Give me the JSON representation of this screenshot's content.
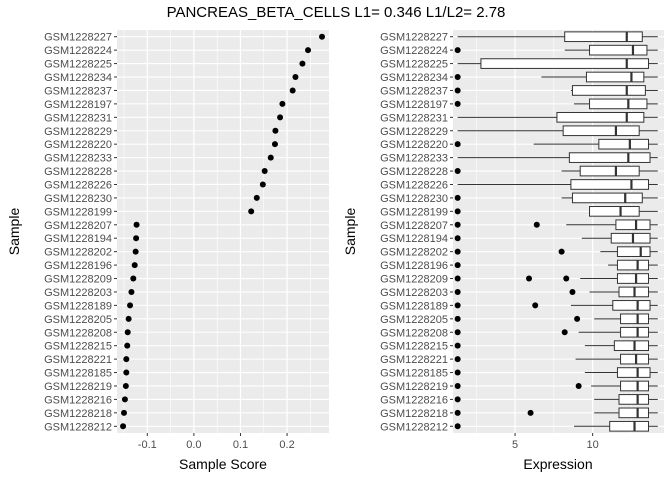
{
  "figure": {
    "title": "PANCREAS_BETA_CELLS L1= 0.346 L1/L2= 2.78"
  },
  "colors": {
    "panel_bg": "#ebebeb",
    "grid": "#ffffff",
    "point": "#000000",
    "box_fill": "#ffffff",
    "box_line": "#333333",
    "tick_text": "#4d4d4d",
    "axis_title": "#000000"
  },
  "chart_data": [
    {
      "type": "scatter",
      "title": "",
      "xlabel": "Sample Score",
      "ylabel": "Sample",
      "xlim": [
        -0.165,
        0.29
      ],
      "xticks": [
        -0.1,
        0.0,
        0.1,
        0.2
      ],
      "xtick_labels": [
        "-0.1",
        "0.0",
        "0.1",
        "0.2"
      ],
      "grid": true,
      "legend": "none",
      "points": [
        {
          "sample": "GSM1228227",
          "score": 0.275
        },
        {
          "sample": "GSM1228224",
          "score": 0.245
        },
        {
          "sample": "GSM1228225",
          "score": 0.233
        },
        {
          "sample": "GSM1228234",
          "score": 0.218
        },
        {
          "sample": "GSM1228237",
          "score": 0.212
        },
        {
          "sample": "GSM1228197",
          "score": 0.19
        },
        {
          "sample": "GSM1228231",
          "score": 0.185
        },
        {
          "sample": "GSM1228229",
          "score": 0.175
        },
        {
          "sample": "GSM1228220",
          "score": 0.174
        },
        {
          "sample": "GSM1228233",
          "score": 0.165
        },
        {
          "sample": "GSM1228228",
          "score": 0.152
        },
        {
          "sample": "GSM1228226",
          "score": 0.148
        },
        {
          "sample": "GSM1228230",
          "score": 0.135
        },
        {
          "sample": "GSM1228199",
          "score": 0.123
        },
        {
          "sample": "GSM1228207",
          "score": -0.123
        },
        {
          "sample": "GSM1228194",
          "score": -0.124
        },
        {
          "sample": "GSM1228202",
          "score": -0.125
        },
        {
          "sample": "GSM1228196",
          "score": -0.127
        },
        {
          "sample": "GSM1228209",
          "score": -0.13
        },
        {
          "sample": "GSM1228203",
          "score": -0.134
        },
        {
          "sample": "GSM1228189",
          "score": -0.137
        },
        {
          "sample": "GSM1228205",
          "score": -0.14
        },
        {
          "sample": "GSM1228208",
          "score": -0.142
        },
        {
          "sample": "GSM1228215",
          "score": -0.143
        },
        {
          "sample": "GSM1228221",
          "score": -0.145
        },
        {
          "sample": "GSM1228185",
          "score": -0.145
        },
        {
          "sample": "GSM1228219",
          "score": -0.146
        },
        {
          "sample": "GSM1228216",
          "score": -0.148
        },
        {
          "sample": "GSM1228218",
          "score": -0.15
        },
        {
          "sample": "GSM1228212",
          "score": -0.152
        }
      ]
    },
    {
      "type": "boxplot",
      "title": "",
      "xlabel": "Expression",
      "ylabel": "Sample",
      "xlim": [
        1.0,
        14.6
      ],
      "xticks": [
        5,
        10
      ],
      "xtick_labels": [
        "5",
        "10"
      ],
      "grid": true,
      "legend": "none",
      "boxes": [
        {
          "sample": "GSM1228227",
          "min": 1.3,
          "q1": 8.2,
          "median": 12.2,
          "q3": 13.2,
          "max": 14.2,
          "outliers": []
        },
        {
          "sample": "GSM1228224",
          "min": 8.2,
          "q1": 9.8,
          "median": 12.6,
          "q3": 13.5,
          "max": 14.2,
          "outliers": [
            1.3
          ]
        },
        {
          "sample": "GSM1228225",
          "min": 1.3,
          "q1": 2.8,
          "median": 12.2,
          "q3": 13.6,
          "max": 14.2,
          "outliers": []
        },
        {
          "sample": "GSM1228234",
          "min": 6.7,
          "q1": 9.6,
          "median": 12.5,
          "q3": 13.3,
          "max": 14.2,
          "outliers": [
            1.3
          ]
        },
        {
          "sample": "GSM1228237",
          "min": 8.6,
          "q1": 8.7,
          "median": 12.2,
          "q3": 13.4,
          "max": 14.2,
          "outliers": [
            1.3
          ]
        },
        {
          "sample": "GSM1228197",
          "min": 8.8,
          "q1": 9.8,
          "median": 12.3,
          "q3": 13.5,
          "max": 14.2,
          "outliers": [
            1.3
          ]
        },
        {
          "sample": "GSM1228231",
          "min": 1.3,
          "q1": 7.7,
          "median": 12.2,
          "q3": 13.3,
          "max": 14.2,
          "outliers": []
        },
        {
          "sample": "GSM1228229",
          "min": 1.3,
          "q1": 8.1,
          "median": 11.5,
          "q3": 13.0,
          "max": 14.2,
          "outliers": []
        },
        {
          "sample": "GSM1228220",
          "min": 6.2,
          "q1": 10.4,
          "median": 12.4,
          "q3": 13.6,
          "max": 14.2,
          "outliers": [
            1.3
          ]
        },
        {
          "sample": "GSM1228233",
          "min": 1.3,
          "q1": 8.5,
          "median": 12.3,
          "q3": 13.7,
          "max": 14.2,
          "outliers": []
        },
        {
          "sample": "GSM1228228",
          "min": 8.0,
          "q1": 9.2,
          "median": 11.5,
          "q3": 13.0,
          "max": 14.2,
          "outliers": [
            1.3
          ]
        },
        {
          "sample": "GSM1228226",
          "min": 1.3,
          "q1": 8.6,
          "median": 12.5,
          "q3": 13.6,
          "max": 14.2,
          "outliers": []
        },
        {
          "sample": "GSM1228230",
          "min": 8.0,
          "q1": 8.7,
          "median": 12.1,
          "q3": 13.2,
          "max": 14.2,
          "outliers": [
            1.3
          ]
        },
        {
          "sample": "GSM1228199",
          "min": 9.8,
          "q1": 9.8,
          "median": 11.8,
          "q3": 13.0,
          "max": 14.2,
          "outliers": [
            1.3
          ]
        },
        {
          "sample": "GSM1228207",
          "min": 8.3,
          "q1": 11.5,
          "median": 12.8,
          "q3": 13.7,
          "max": 14.2,
          "outliers": [
            1.3,
            6.4
          ]
        },
        {
          "sample": "GSM1228194",
          "min": 9.3,
          "q1": 11.2,
          "median": 12.6,
          "q3": 13.7,
          "max": 14.2,
          "outliers": [
            1.3
          ]
        },
        {
          "sample": "GSM1228202",
          "min": 10.5,
          "q1": 11.6,
          "median": 13.1,
          "q3": 13.7,
          "max": 14.2,
          "outliers": [
            1.3,
            8.0
          ]
        },
        {
          "sample": "GSM1228196",
          "min": 11.0,
          "q1": 11.6,
          "median": 12.9,
          "q3": 13.6,
          "max": 14.2,
          "outliers": [
            1.3
          ]
        },
        {
          "sample": "GSM1228209",
          "min": 9.2,
          "q1": 11.6,
          "median": 12.8,
          "q3": 13.6,
          "max": 14.2,
          "outliers": [
            1.3,
            5.9,
            8.3
          ]
        },
        {
          "sample": "GSM1228203",
          "min": 9.8,
          "q1": 11.7,
          "median": 12.7,
          "q3": 13.6,
          "max": 14.2,
          "outliers": [
            1.3,
            8.7
          ]
        },
        {
          "sample": "GSM1228189",
          "min": 8.6,
          "q1": 11.3,
          "median": 12.9,
          "q3": 13.7,
          "max": 14.2,
          "outliers": [
            1.3,
            6.3
          ]
        },
        {
          "sample": "GSM1228205",
          "min": 10.1,
          "q1": 11.8,
          "median": 12.9,
          "q3": 13.6,
          "max": 14.2,
          "outliers": [
            1.3,
            9.0
          ]
        },
        {
          "sample": "GSM1228208",
          "min": 9.1,
          "q1": 11.8,
          "median": 12.9,
          "q3": 13.6,
          "max": 14.2,
          "outliers": [
            1.3,
            8.2
          ]
        },
        {
          "sample": "GSM1228215",
          "min": 9.5,
          "q1": 11.4,
          "median": 12.7,
          "q3": 13.6,
          "max": 14.2,
          "outliers": [
            1.3
          ]
        },
        {
          "sample": "GSM1228221",
          "min": 8.9,
          "q1": 11.8,
          "median": 12.8,
          "q3": 13.6,
          "max": 14.2,
          "outliers": [
            1.3
          ]
        },
        {
          "sample": "GSM1228185",
          "min": 9.5,
          "q1": 11.6,
          "median": 12.9,
          "q3": 13.7,
          "max": 14.2,
          "outliers": [
            1.3
          ]
        },
        {
          "sample": "GSM1228219",
          "min": 9.9,
          "q1": 11.8,
          "median": 12.9,
          "q3": 13.6,
          "max": 14.2,
          "outliers": [
            1.3,
            9.1
          ]
        },
        {
          "sample": "GSM1228216",
          "min": 10.1,
          "q1": 11.7,
          "median": 12.9,
          "q3": 13.6,
          "max": 14.2,
          "outliers": [
            1.3
          ]
        },
        {
          "sample": "GSM1228218",
          "min": 10.1,
          "q1": 11.7,
          "median": 12.9,
          "q3": 13.6,
          "max": 14.2,
          "outliers": [
            1.3,
            6.0
          ]
        },
        {
          "sample": "GSM1228212",
          "min": 8.8,
          "q1": 11.1,
          "median": 12.7,
          "q3": 13.6,
          "max": 14.2,
          "outliers": [
            1.3
          ]
        }
      ]
    }
  ]
}
